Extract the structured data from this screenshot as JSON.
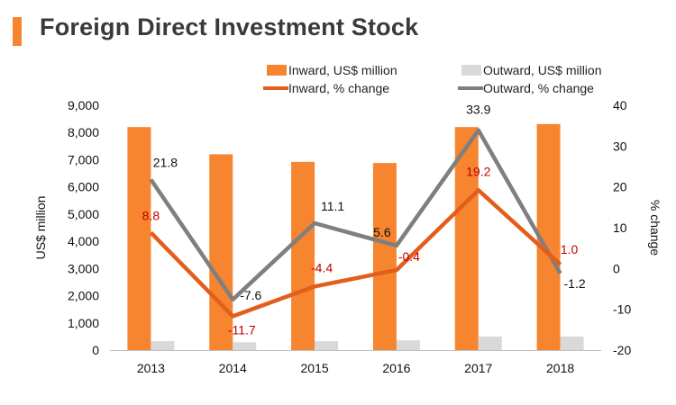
{
  "title": "Foreign Direct Investment Stock",
  "colors": {
    "inward_bar": "#f7852f",
    "outward_bar": "#d9d9d9",
    "inward_line": "#e35d1c",
    "outward_line": "#7f7f7f",
    "title_accent": "#f7852f"
  },
  "chart_data": {
    "type": "bar",
    "title": "Foreign Direct Investment Stock",
    "categories": [
      "2013",
      "2014",
      "2015",
      "2016",
      "2017",
      "2018"
    ],
    "left_axis": {
      "label": "US$ million",
      "range": [
        0,
        9000
      ],
      "ticks": [
        "0",
        "1,000",
        "2,000",
        "3,000",
        "4,000",
        "5,000",
        "6,000",
        "7,000",
        "8,000",
        "9,000"
      ]
    },
    "right_axis": {
      "label": "% change",
      "range": [
        -20,
        40
      ],
      "ticks": [
        "-20",
        "-10",
        "0",
        "10",
        "20",
        "30",
        "40"
      ]
    },
    "series": [
      {
        "name": "Inward, US$ million",
        "kind": "bar",
        "axis": "left",
        "values": [
          8200,
          7200,
          6920,
          6880,
          8200,
          8310
        ]
      },
      {
        "name": "Outward, US$ million",
        "kind": "bar",
        "axis": "left",
        "values": [
          330,
          290,
          330,
          360,
          500,
          500
        ]
      },
      {
        "name": "Inward, % change",
        "kind": "line",
        "axis": "right",
        "values": [
          8.8,
          -11.7,
          -4.4,
          -0.4,
          19.2,
          1.0
        ],
        "labels": [
          "8.8",
          "-11.7",
          "-4.4",
          "-0.4",
          "19.2",
          "1.0"
        ]
      },
      {
        "name": "Outward, % change",
        "kind": "line",
        "axis": "right",
        "values": [
          21.8,
          -7.6,
          11.1,
          5.6,
          33.9,
          -1.2
        ],
        "labels": [
          "21.8",
          "-7.6",
          "11.1",
          "5.6",
          "33.9",
          "-1.2"
        ]
      }
    ],
    "legend_position": "top",
    "grid": false
  }
}
